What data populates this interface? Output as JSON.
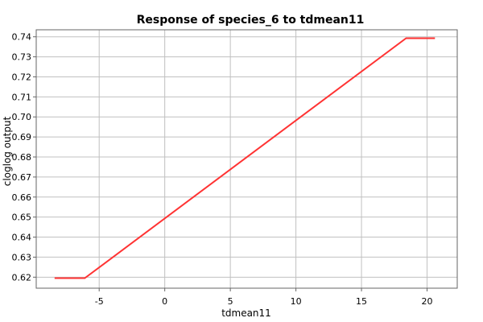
{
  "chart_data": {
    "type": "line",
    "title": "Response of species_6 to tdmean11",
    "xlabel": "tdmean11",
    "ylabel": "cloglog output",
    "xlim": [
      -9.8,
      22.3
    ],
    "ylim": [
      0.6145,
      0.7435
    ],
    "x_ticks": [
      -5,
      0,
      5,
      10,
      15,
      20
    ],
    "x_tick_labels": [
      "-5",
      "0",
      "5",
      "10",
      "15",
      "20"
    ],
    "y_ticks": [
      0.62,
      0.63,
      0.64,
      0.65,
      0.66,
      0.67,
      0.68,
      0.69,
      0.7,
      0.71,
      0.72,
      0.73,
      0.74
    ],
    "y_tick_labels": [
      "0.62",
      "0.63",
      "0.64",
      "0.65",
      "0.66",
      "0.67",
      "0.68",
      "0.69",
      "0.70",
      "0.71",
      "0.72",
      "0.73",
      "0.74"
    ],
    "grid": true,
    "series": [
      {
        "x": [
          -8.4,
          -6.1,
          18.4,
          20.6
        ],
        "y": [
          0.6195,
          0.6195,
          0.7393,
          0.7393
        ],
        "color": "#ff3333"
      }
    ]
  }
}
